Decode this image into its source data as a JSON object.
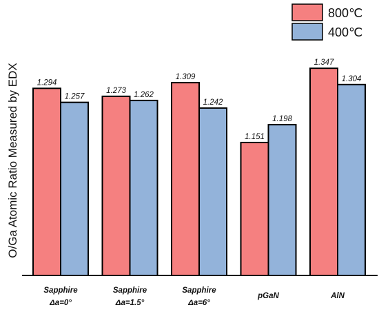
{
  "chart_data": {
    "type": "bar",
    "title": "",
    "xlabel": "",
    "ylabel": "O/Ga Atomic Ratio Measured by EDX",
    "legend_position": "top-right",
    "categories": [
      {
        "line1": "Sapphire",
        "line2": "Δa=0°"
      },
      {
        "line1": "Sapphire",
        "line2": "Δa=1.5°"
      },
      {
        "line1": "Sapphire",
        "line2": "Δa=6°"
      },
      {
        "line1": "pGaN",
        "line2": ""
      },
      {
        "line1": "AlN",
        "line2": ""
      }
    ],
    "series": [
      {
        "name": "800℃",
        "color": "#F58080",
        "values": [
          1.294,
          1.273,
          1.309,
          1.151,
          1.347
        ],
        "labels": [
          "1.294",
          "1.273",
          "1.309",
          "1.151",
          "1.347"
        ]
      },
      {
        "name": "400℃",
        "color": "#93B3DA",
        "values": [
          1.257,
          1.262,
          1.242,
          1.198,
          1.304
        ],
        "labels": [
          "1.257",
          "1.262",
          "1.242",
          "1.198",
          "1.304"
        ]
      }
    ],
    "ylim": [
      0.8,
      1.4
    ],
    "grid": false
  }
}
